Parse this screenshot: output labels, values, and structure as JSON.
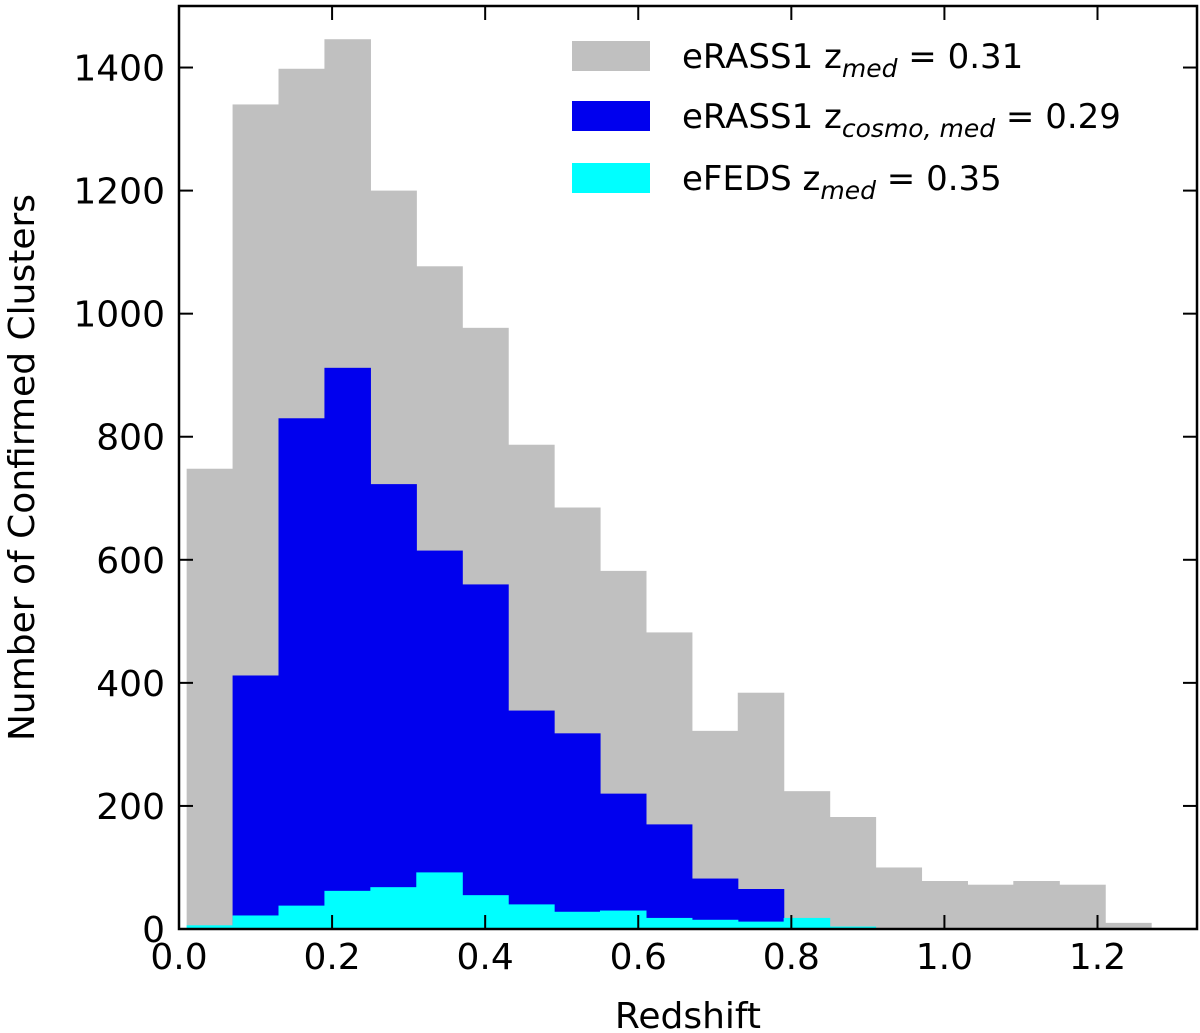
{
  "chart_data": {
    "type": "bar",
    "xlabel": "Redshift",
    "ylabel": "Number of Confirmed Clusters",
    "xlim": [
      0.0,
      1.33
    ],
    "ylim": [
      0,
      1500
    ],
    "xticks": [
      "0.0",
      "0.2",
      "0.4",
      "0.6",
      "0.8",
      "1.0",
      "1.2"
    ],
    "yticks": [
      "0",
      "200",
      "400",
      "600",
      "800",
      "1000",
      "1200",
      "1400"
    ],
    "bin_edges": [
      0.01,
      0.07,
      0.13,
      0.19,
      0.25,
      0.31,
      0.37,
      0.43,
      0.49,
      0.55,
      0.61,
      0.67,
      0.73,
      0.79,
      0.85,
      0.91,
      0.97,
      1.03,
      1.09,
      1.15,
      1.21,
      1.27,
      1.33
    ],
    "series": [
      {
        "name": "eRASS1",
        "legend_label": "eRASS1 ",
        "subscript": "med",
        "value_text": " = 0.31",
        "color": "#c0c0c0",
        "values": [
          748,
          1340,
          1398,
          1446,
          1200,
          1077,
          977,
          787,
          685,
          582,
          482,
          322,
          384,
          224,
          182,
          100,
          78,
          72,
          78,
          72,
          10,
          2
        ]
      },
      {
        "name": "eRASS1 cosmo",
        "legend_label": "eRASS1 ",
        "subscript": "cosmo, med",
        "value_text": " = 0.29",
        "color": "#0000ee",
        "values": [
          0,
          412,
          830,
          912,
          723,
          615,
          560,
          355,
          318,
          220,
          170,
          82,
          65,
          0,
          0,
          0,
          0,
          0,
          0,
          0,
          0,
          0
        ]
      },
      {
        "name": "eFEDS",
        "legend_label": "eFEDS ",
        "subscript": "med",
        "value_text": " = 0.35",
        "color": "#00ffff",
        "values": [
          6,
          22,
          38,
          62,
          68,
          92,
          55,
          40,
          28,
          30,
          18,
          15,
          12,
          18,
          4,
          0,
          0,
          0,
          0,
          0,
          0,
          0
        ]
      }
    ],
    "legend_position": "top-right"
  }
}
